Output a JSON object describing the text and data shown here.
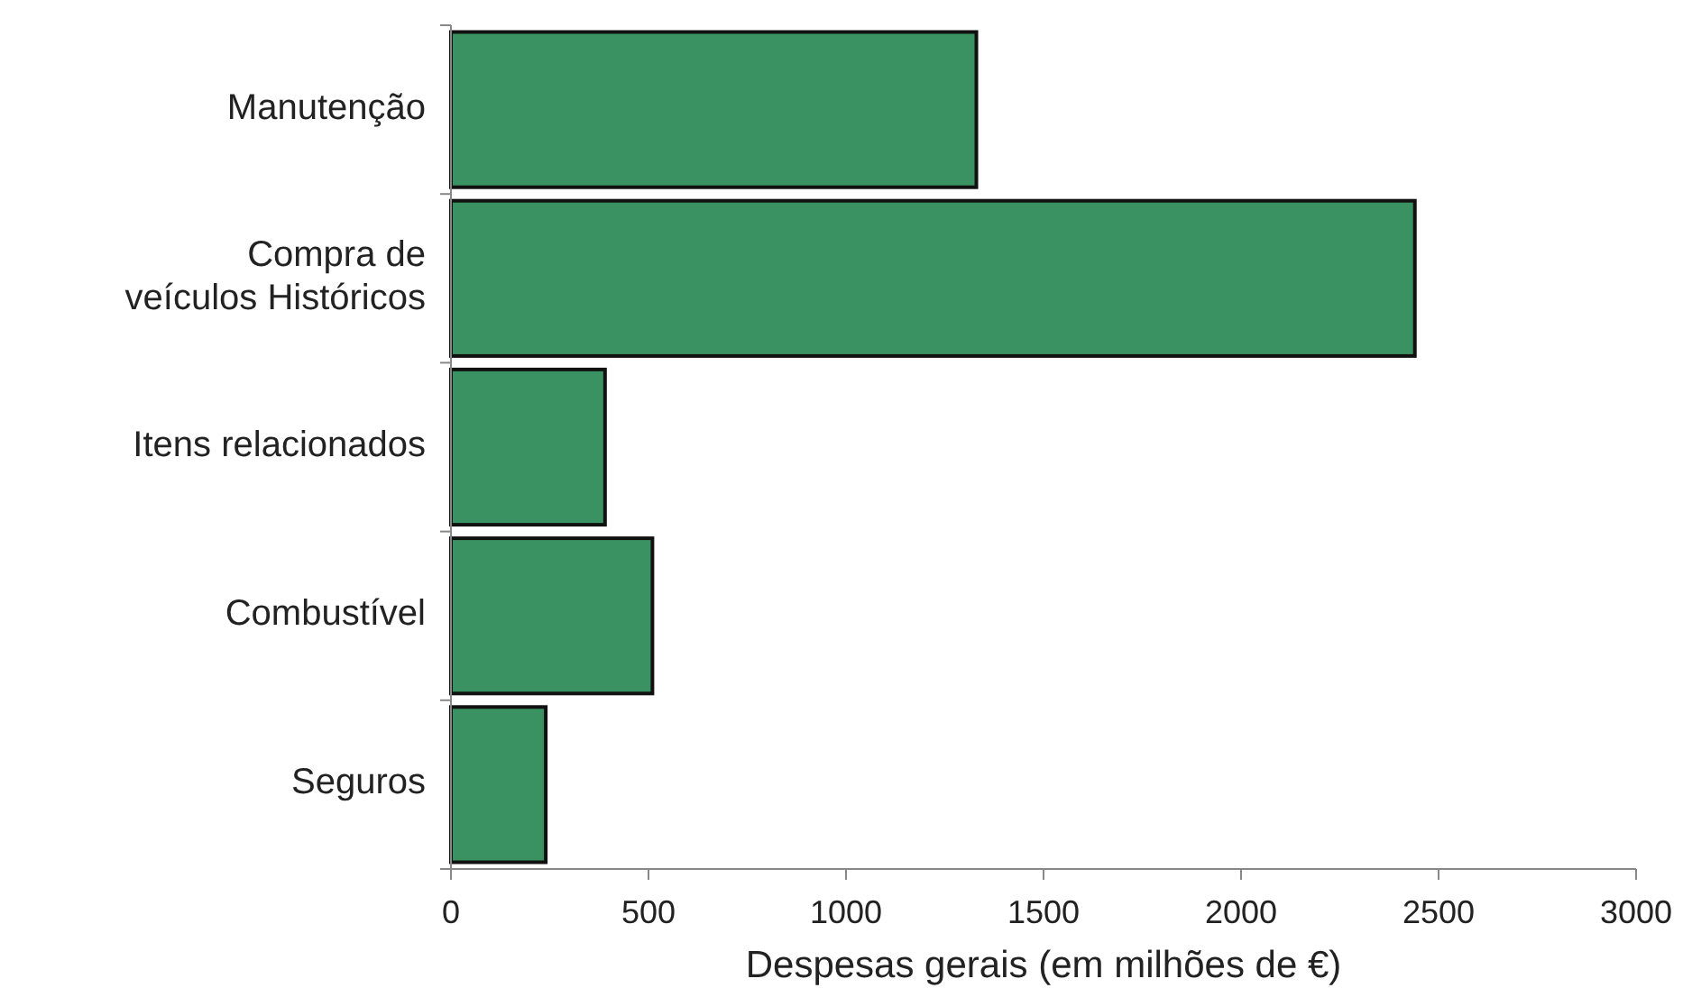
{
  "chart_data": {
    "type": "bar",
    "orientation": "horizontal",
    "categories": [
      "Manutenção",
      "Compra de\nveículos Históricos",
      "Itens relacionados",
      "Combustível",
      "Seguros"
    ],
    "values": [
      1330,
      2440,
      390,
      510,
      240
    ],
    "color": "#3a9262",
    "xlabel": "Despesas gerais (em milhões de €)",
    "xlim": [
      0,
      3000
    ],
    "xticks": [
      0,
      500,
      1000,
      1500,
      2000,
      2500,
      3000
    ],
    "grid": false
  }
}
